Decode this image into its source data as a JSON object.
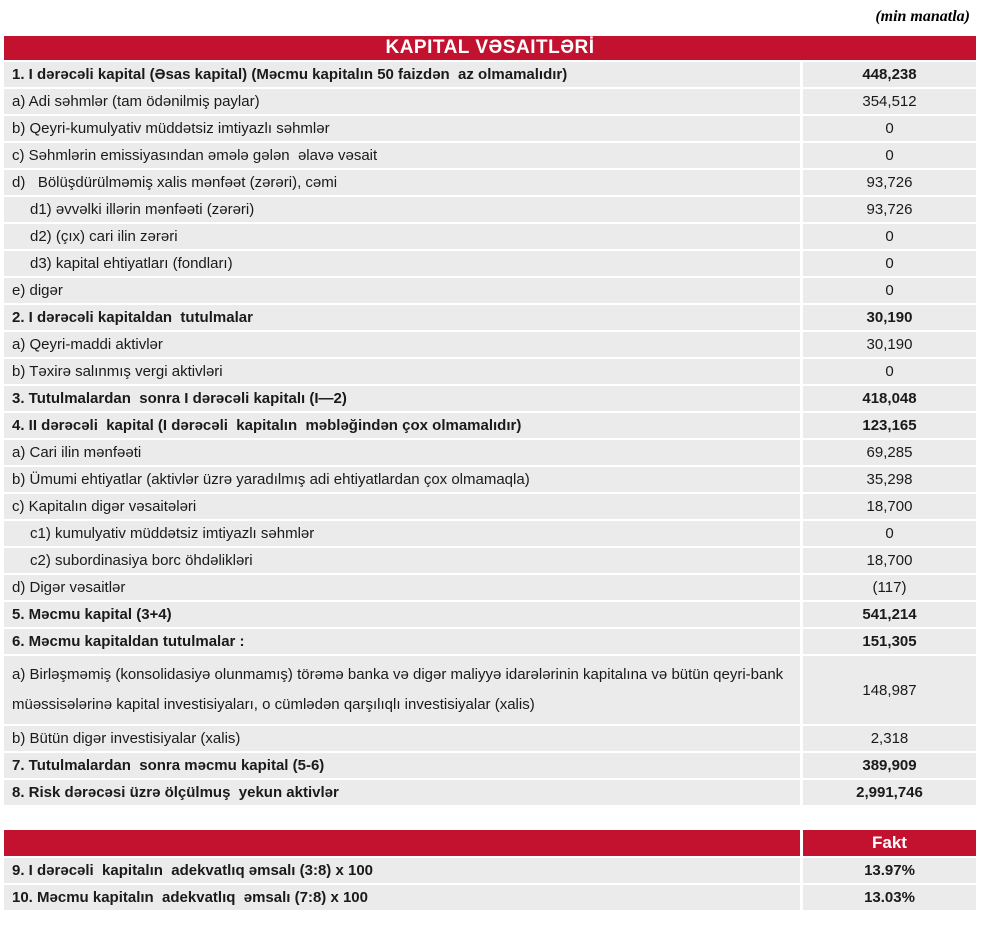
{
  "unit_note": "(min manatla)",
  "colors": {
    "accent_red": "#C2122F",
    "row_gray": "#EBEBEB"
  },
  "capital_table": {
    "title": "KAPITAL VƏSAITLƏRİ",
    "rows": [
      {
        "label": "1. I dərəcəli kapital (Əsas kapital) (Məcmu kapitalın 50 faizdən  az olmamalıdır)",
        "value": "448,238",
        "bold": true
      },
      {
        "label": "a) Adi səhmlər (tam ödənilmiş paylar)",
        "value": "354,512"
      },
      {
        "label": "b) Qeyri-kumulyativ müddətsiz imtiyazlı səhmlər",
        "value": "0"
      },
      {
        "label": "c) Səhmlərin emissiyasından əmələ gələn  əlavə vəsait",
        "value": "0"
      },
      {
        "label": "d)   Bölüşdürülməmiş xalis mənfəət (zərəri), cəmi",
        "value": "93,726"
      },
      {
        "label": "d1) əvvəlki illərin mənfəəti (zərəri)",
        "value": "93,726",
        "indent": true
      },
      {
        "label": "d2) (çıx) cari ilin zərəri",
        "value": "0",
        "indent": true
      },
      {
        "label": "d3) kapital ehtiyatları (fondları)",
        "value": "0",
        "indent": true
      },
      {
        "label": "e) digər",
        "value": "0"
      },
      {
        "label": "2. I dərəcəli kapitaldan  tutulmalar",
        "value": "30,190",
        "bold": true
      },
      {
        "label": "a) Qeyri-maddi aktivlər",
        "value": "30,190"
      },
      {
        "label": "b) Təxirə salınmış vergi aktivləri",
        "value": "0"
      },
      {
        "label": "3. Tutulmalardan  sonra I dərəcəli kapitalı (I—2)",
        "value": "418,048",
        "bold": true
      },
      {
        "label": "4. II dərəcəli  kapital (I dərəcəli  kapitalın  məbləğindən çox olmamalıdır)",
        "value": "123,165",
        "bold": true
      },
      {
        "label": "a) Cari ilin mənfəəti",
        "value": "69,285"
      },
      {
        "label": "b) Ümumi ehtiyatlar (aktivlər üzrə yaradılmış adi ehtiyatlardan çox olmamaqla)",
        "value": "35,298"
      },
      {
        "label": "c) Kapitalın digər vəsaitələri",
        "value": "18,700"
      },
      {
        "label": "c1) kumulyativ müddətsiz imtiyazlı səhmlər",
        "value": "0",
        "indent": true
      },
      {
        "label": "c2) subordinasiya borc öhdəlikləri",
        "value": "18,700",
        "indent": true
      },
      {
        "label": "d) Digər vəsaitlər",
        "value": "(117)"
      },
      {
        "label": "5. Məcmu kapital (3+4)",
        "value": "541,214",
        "bold": true
      },
      {
        "label": "6. Məcmu kapitaldan tutulmalar :",
        "value": "151,305",
        "bold": true
      },
      {
        "label": "a) Birləşməmiş (konsolidasiyə olunmamış) törəmə banka və digər maliyyə idarələrinin kapitalına və bütün qeyri-bank müəssisələrinə kapital investisiyaları, o cümlədən qarşılıqlı investisiyalar (xalis)",
        "value": "148,987",
        "tall": true
      },
      {
        "label": "b) Bütün digər investisiyalar (xalis)",
        "value": "2,318"
      },
      {
        "label": "7. Tutulmalardan  sonra məcmu kapital (5-6)",
        "value": "389,909",
        "bold": true
      },
      {
        "label": "8. Risk dərəcəsi üzrə ölçülmuş  yekun aktivlər",
        "value": "2,991,746",
        "bold": true
      }
    ]
  },
  "ratio_table": {
    "header_label": "Fakt",
    "rows": [
      {
        "label": "9. I dərəcəli  kapitalın  adekvatlıq əmsalı (3:8) x 100",
        "value": "13.97%",
        "bold": true
      },
      {
        "label": "10. Məcmu kapitalın  adekvatlıq  əmsalı (7:8) x 100",
        "value": "13.03%",
        "bold": true
      }
    ]
  }
}
